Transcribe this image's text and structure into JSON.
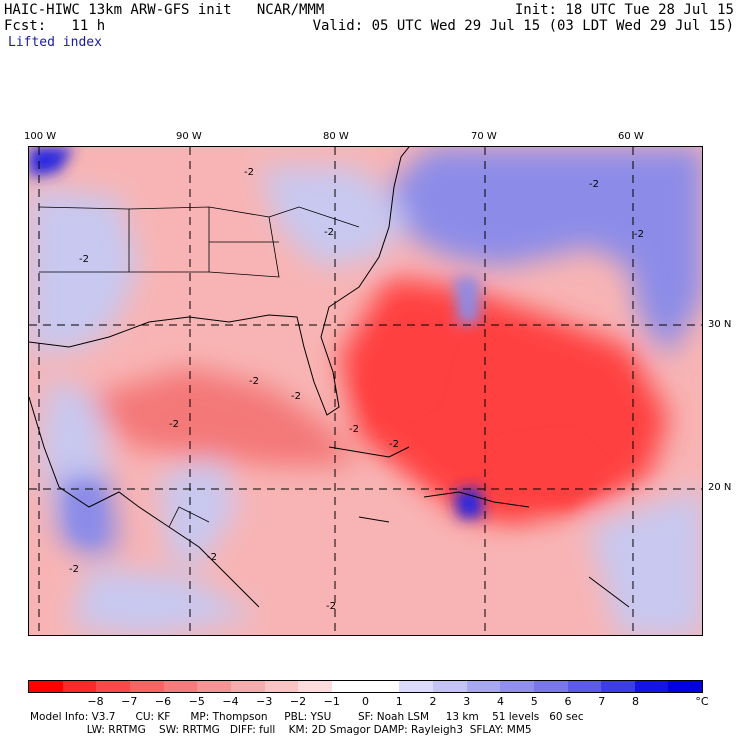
{
  "header": {
    "model_line": "HAIC-HIWC 13km ARW-GFS init   NCAR/MMM",
    "fcst_line": "Fcst:   11 h",
    "init_line": "Init: 18 UTC Tue 28 Jul 15",
    "valid_line": "Valid: 05 UTC Wed 29 Jul 15 (03 LDT Wed 29 Jul 15)",
    "field_name": "Lifted index"
  },
  "map": {
    "lon_labels": [
      "100 W",
      "90 W",
      "80 W",
      "70 W",
      "60 W"
    ],
    "lat_labels": [
      "30 N",
      "20 N"
    ],
    "contour_label": "-2",
    "colors": {
      "neg_strong": "#ff4040",
      "neg_mid": "#f47878",
      "neg_light": "#f8b4b4",
      "neutral": "#ffffff",
      "pos_light": "#c8c8f0",
      "pos_mid": "#8c8ce8",
      "pos_strong": "#2828e0"
    }
  },
  "legend": {
    "unit": "°C",
    "tick_labels": [
      "−8",
      "−7",
      "−6",
      "−5",
      "−4",
      "−3",
      "−2",
      "−1",
      "0",
      "1",
      "2",
      "3",
      "4",
      "5",
      "6",
      "7",
      "8"
    ],
    "colors": [
      "#ff0000",
      "#ff2828",
      "#fc4848",
      "#f86464",
      "#f47c7c",
      "#f49494",
      "#f4acac",
      "#f8c4c4",
      "#fcdcdc",
      "#ffffff",
      "#ffffff",
      "#dcdcfa",
      "#c4c4f4",
      "#a8a8f0",
      "#9090ec",
      "#7878e8",
      "#5c5ce8",
      "#3c3ce8",
      "#1414e8",
      "#0000e0"
    ]
  },
  "footer": {
    "line1": "Model Info: V3.7      CU: KF      MP: Thompson     PBL: YSU        SF: Noah LSM     13 km    51 levels   60 sec",
    "line2": "                 LW: RRTMG    SW: RRTMG   DIFF: full    KM: 2D Smagor DAMP: Rayleigh3  SFLAY: MM5"
  }
}
